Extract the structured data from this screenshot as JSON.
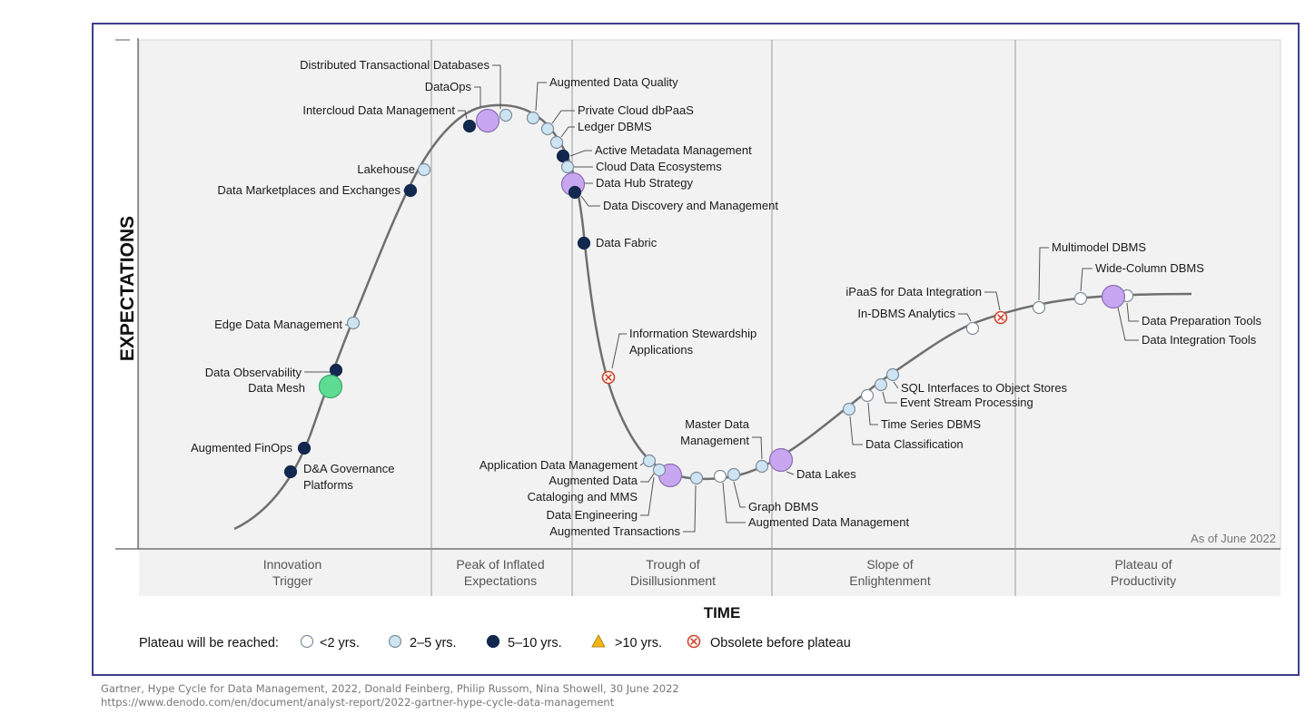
{
  "axis": {
    "y_label": "EXPECTATIONS",
    "x_label": "TIME"
  },
  "as_of": "As of June 2022",
  "phases": [
    {
      "name": "innovation-trigger",
      "lines": [
        "Innovation",
        "Trigger"
      ]
    },
    {
      "name": "peak",
      "lines": [
        "Peak of Inflated",
        "Expectations"
      ]
    },
    {
      "name": "trough",
      "lines": [
        "Trough of",
        "Disillusionment"
      ]
    },
    {
      "name": "slope",
      "lines": [
        "Slope of",
        "Enlightenment"
      ]
    },
    {
      "name": "plateau",
      "lines": [
        "Plateau of",
        "Productivity"
      ]
    }
  ],
  "legend": {
    "title": "Plateau will be reached:",
    "items": [
      {
        "label": "<2 yrs.",
        "category": "lt2"
      },
      {
        "label": "2–5 yrs.",
        "category": "2to5"
      },
      {
        "label": "5–10 yrs.",
        "category": "5to10"
      },
      {
        "label": ">10 yrs.",
        "category": "gt10"
      },
      {
        "label": "Obsolete before plateau",
        "category": "obsolete"
      }
    ]
  },
  "colors": {
    "frame": "#3d3e8c",
    "curve": "#6f6f6f",
    "lt2": "#ffffff",
    "2to5": "#cfe4f3",
    "5to10": "#13284f",
    "gt10": "#f2b417",
    "obsolete": "#d0432d",
    "highlight_purple": "#c9a6f0",
    "highlight_green": "#5fdc93"
  },
  "technologies": [
    {
      "name": "Distributed Transactional Databases",
      "label_lines": [
        "Distributed Transactional Databases"
      ],
      "category": "2to5"
    },
    {
      "name": "DataOps",
      "label_lines": [
        "DataOps"
      ],
      "category": "2to5",
      "highlight": "purple"
    },
    {
      "name": "Augmented Data Quality",
      "label_lines": [
        "Augmented Data Quality"
      ],
      "category": "2to5"
    },
    {
      "name": "Intercloud Data Management",
      "label_lines": [
        "Intercloud Data Management"
      ],
      "category": "5to10"
    },
    {
      "name": "Private Cloud dbPaaS",
      "label_lines": [
        "Private Cloud dbPaaS"
      ],
      "category": "2to5"
    },
    {
      "name": "Ledger DBMS",
      "label_lines": [
        "Ledger DBMS"
      ],
      "category": "2to5"
    },
    {
      "name": "Active Metadata Management",
      "label_lines": [
        "Active Metadata Management"
      ],
      "category": "5to10"
    },
    {
      "name": "Cloud Data Ecosystems",
      "label_lines": [
        "Cloud Data Ecosystems"
      ],
      "category": "2to5"
    },
    {
      "name": "Data Hub Strategy",
      "label_lines": [
        "Data Hub Strategy"
      ],
      "category": "2to5",
      "highlight": "purple"
    },
    {
      "name": "Data Discovery and Management",
      "label_lines": [
        "Data Discovery and Management"
      ],
      "category": "5to10"
    },
    {
      "name": "Lakehouse",
      "label_lines": [
        "Lakehouse"
      ],
      "category": "2to5"
    },
    {
      "name": "Data Marketplaces and Exchanges",
      "label_lines": [
        "Data Marketplaces and Exchanges"
      ],
      "category": "5to10"
    },
    {
      "name": "Data Fabric",
      "label_lines": [
        "Data Fabric"
      ],
      "category": "5to10"
    },
    {
      "name": "Edge Data Management",
      "label_lines": [
        "Edge Data Management"
      ],
      "category": "2to5"
    },
    {
      "name": "Data Observability",
      "label_lines": [
        "Data Observability"
      ],
      "category": "5to10"
    },
    {
      "name": "Data Mesh",
      "label_lines": [
        "Data Mesh"
      ],
      "category": "obsolete",
      "highlight": "green"
    },
    {
      "name": "Augmented FinOps",
      "label_lines": [
        "Augmented FinOps"
      ],
      "category": "5to10"
    },
    {
      "name": "D&A Governance Platforms",
      "label_lines": [
        "D&A Governance",
        "Platforms"
      ],
      "category": "5to10"
    },
    {
      "name": "Information Stewardship Applications",
      "label_lines": [
        "Information Stewardship",
        "Applications"
      ],
      "category": "obsolete"
    },
    {
      "name": "Application Data Management",
      "label_lines": [
        "Application Data Management"
      ],
      "category": "2to5"
    },
    {
      "name": "Augmented Data Cataloging and MMS",
      "label_lines": [
        "Augmented Data",
        "Cataloging and MMS"
      ],
      "category": "2to5",
      "highlight": "purple"
    },
    {
      "name": "Data Engineering",
      "label_lines": [
        "Data Engineering"
      ],
      "category": "2to5"
    },
    {
      "name": "Augmented Transactions",
      "label_lines": [
        "Augmented Transactions"
      ],
      "category": "2to5"
    },
    {
      "name": "Graph DBMS",
      "label_lines": [
        "Graph DBMS"
      ],
      "category": "lt2"
    },
    {
      "name": "Augmented Data Management",
      "label_lines": [
        "Augmented Data Management"
      ],
      "category": "2to5"
    },
    {
      "name": "Master Data Management",
      "label_lines": [
        "Master Data",
        "Management"
      ],
      "category": "2to5"
    },
    {
      "name": "Data Lakes",
      "label_lines": [
        "Data Lakes"
      ],
      "category": "lt2",
      "highlight": "purple"
    },
    {
      "name": "Data Classification",
      "label_lines": [
        "Data Classification"
      ],
      "category": "2to5"
    },
    {
      "name": "Time Series DBMS",
      "label_lines": [
        "Time Series DBMS"
      ],
      "category": "lt2"
    },
    {
      "name": "Event Stream Processing",
      "label_lines": [
        "Event Stream Processing"
      ],
      "category": "2to5"
    },
    {
      "name": "SQL Interfaces to Object Stores",
      "label_lines": [
        "SQL Interfaces to Object Stores"
      ],
      "category": "2to5"
    },
    {
      "name": "In-DBMS Analytics",
      "label_lines": [
        "In-DBMS Analytics"
      ],
      "category": "lt2"
    },
    {
      "name": "iPaaS for Data Integration",
      "label_lines": [
        "iPaaS for Data Integration"
      ],
      "category": "obsolete"
    },
    {
      "name": "Multimodel DBMS",
      "label_lines": [
        "Multimodel DBMS"
      ],
      "category": "lt2"
    },
    {
      "name": "Wide-Column DBMS",
      "label_lines": [
        "Wide-Column DBMS"
      ],
      "category": "lt2"
    },
    {
      "name": "Data Preparation Tools",
      "label_lines": [
        "Data Preparation Tools"
      ],
      "category": "lt2"
    },
    {
      "name": "Data Integration Tools",
      "label_lines": [
        "Data Integration Tools"
      ],
      "category": "lt2",
      "highlight": "purple"
    }
  ],
  "source": {
    "citation": "Gartner, Hype Cycle for Data Management, 2022,  Donald Feinberg, Philip Russom, Nina Showell, 30 June 2022",
    "url": "https://www.denodo.com/en/document/analyst-report/2022-gartner-hype-cycle-data-management"
  }
}
